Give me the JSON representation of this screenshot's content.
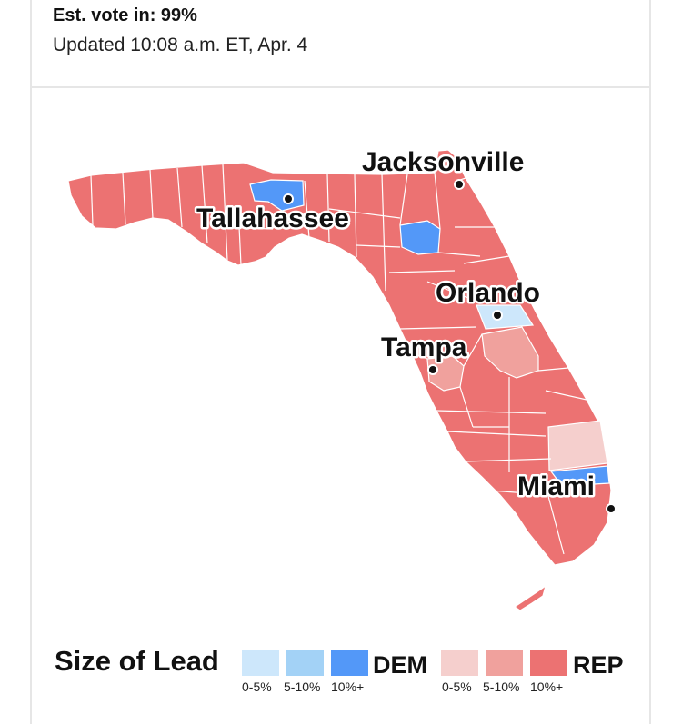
{
  "header": {
    "est_vote": "Est. vote in: 99%",
    "updated": "Updated 10:08 a.m. ET, Apr. 4"
  },
  "map": {
    "region": "Florida",
    "cities": [
      {
        "name": "Jacksonville"
      },
      {
        "name": "Tallahassee"
      },
      {
        "name": "Orlando"
      },
      {
        "name": "Tampa"
      },
      {
        "name": "Miami"
      }
    ],
    "colors": {
      "rep_10_plus": "#ec7272",
      "rep_5_10": "#f0a19d",
      "rep_0_5": "#f5cfcd",
      "dem_0_5": "#cde7fb",
      "dem_5_10": "#a3d2f6",
      "dem_10_plus": "#5398f8",
      "border": "#ffffff"
    }
  },
  "legend": {
    "title": "Size of Lead",
    "dem_label": "DEM",
    "rep_label": "REP",
    "dem_ranges": [
      "0-5%",
      "5-10%",
      "10%+"
    ],
    "rep_ranges": [
      "0-5%",
      "5-10%",
      "10%+"
    ]
  }
}
